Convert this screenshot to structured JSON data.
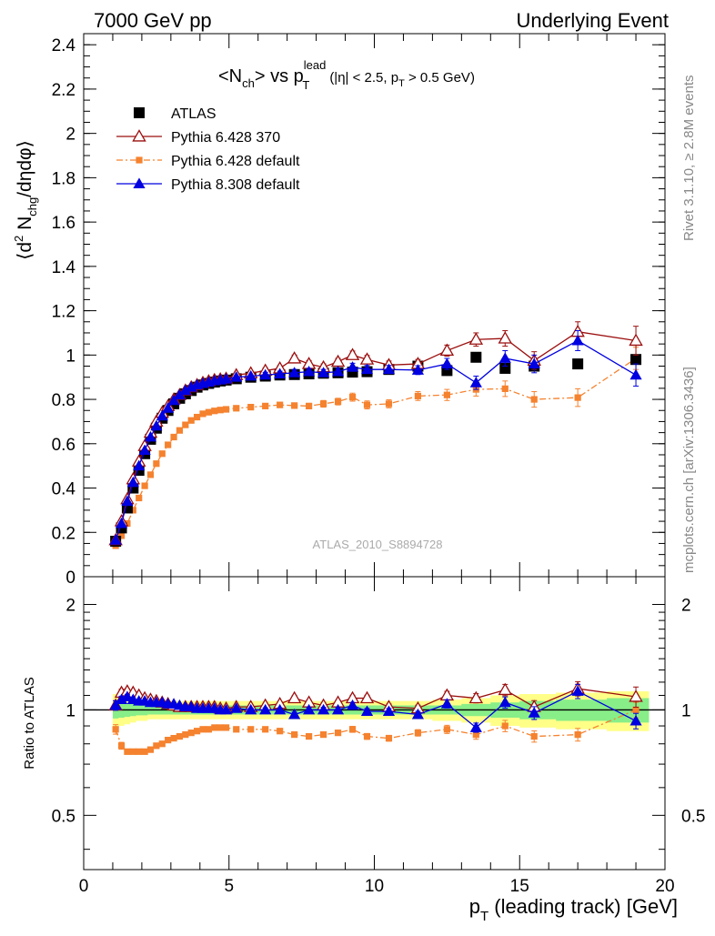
{
  "header": {
    "left": "7000 GeV pp",
    "right": "Underlying Event"
  },
  "side_labels": {
    "rivet": "Rivet 3.1.10, ≥ 2.8M events",
    "mcplots": "mcplots.cern.ch [arXiv:1306.3436]"
  },
  "watermark": "ATLAS_2010_S8894728",
  "title_parts": {
    "lt": "<N",
    "sub1": "ch",
    "mid": "> vs p",
    "sup": "lead",
    "sub2": "T",
    "paren": "(|η| < 2.5, p",
    "sub3": "T",
    "tail": " > 0.5 GeV)"
  },
  "ylabel_parts": {
    "a": "⟨d",
    "b": "2",
    "c": " N",
    "d": "chg",
    "e": "/dηdφ⟩"
  },
  "ratio_ylabel": "Ratio to ATLAS",
  "xlabel_parts": {
    "p": "p",
    "sub": "T",
    "rest": " (leading track) [GeV]"
  },
  "colors": {
    "atlas": "#000000",
    "p6_370": "#9b0e0e",
    "p6_default": "#f5822f",
    "p8_default": "#0000e0",
    "band_yellow": "#ffff88",
    "band_green": "#88ee88"
  },
  "chart_data": [
    {
      "type": "scatter",
      "panel": "main",
      "xlim": [
        0,
        20
      ],
      "ylim": [
        0,
        2.45
      ],
      "yticks": [
        "0",
        "0.2",
        "0.4",
        "0.6",
        "0.8",
        "1",
        "1.2",
        "1.4",
        "1.6",
        "1.8",
        "2",
        "2.2",
        "2.4"
      ],
      "xticks": [
        "0",
        "5",
        "10",
        "15",
        "20"
      ],
      "legend_position": "top-left",
      "x": [
        1.1,
        1.3,
        1.5,
        1.7,
        1.9,
        2.1,
        2.3,
        2.5,
        2.7,
        2.9,
        3.1,
        3.3,
        3.5,
        3.7,
        3.9,
        4.1,
        4.3,
        4.5,
        4.7,
        4.9,
        5.25,
        5.75,
        6.25,
        6.75,
        7.25,
        7.75,
        8.25,
        8.75,
        9.25,
        9.75,
        10.5,
        11.5,
        12.5,
        13.5,
        14.5,
        15.5,
        17.0,
        19.0
      ],
      "series": [
        {
          "name": "ATLAS",
          "marker": "square",
          "values": [
            0.16,
            0.22,
            0.31,
            0.4,
            0.48,
            0.555,
            0.62,
            0.67,
            0.715,
            0.75,
            0.78,
            0.805,
            0.825,
            0.84,
            0.855,
            0.865,
            0.872,
            0.878,
            0.883,
            0.887,
            0.893,
            0.9,
            0.905,
            0.91,
            0.912,
            0.915,
            0.918,
            0.92,
            0.923,
            0.925,
            0.935,
            0.95,
            0.93,
            0.99,
            0.94,
            0.95,
            0.96,
            0.98
          ],
          "errors": [
            0.005,
            0.005,
            0.005,
            0.005,
            0.005,
            0.005,
            0.005,
            0.005,
            0.005,
            0.005,
            0.005,
            0.005,
            0.005,
            0.005,
            0.005,
            0.005,
            0.005,
            0.005,
            0.005,
            0.005,
            0.005,
            0.005,
            0.005,
            0.005,
            0.005,
            0.005,
            0.005,
            0.005,
            0.006,
            0.006,
            0.008,
            0.01,
            0.012,
            0.015,
            0.02,
            0.025,
            0.03,
            0.04
          ]
        },
        {
          "name": "Pythia 6.428 370",
          "marker": "triangle-open",
          "values": [
            0.165,
            0.25,
            0.35,
            0.44,
            0.52,
            0.59,
            0.65,
            0.7,
            0.74,
            0.77,
            0.8,
            0.82,
            0.84,
            0.855,
            0.865,
            0.875,
            0.882,
            0.888,
            0.891,
            0.894,
            0.91,
            0.918,
            0.93,
            0.94,
            0.985,
            0.96,
            0.945,
            0.97,
            1.0,
            0.98,
            0.955,
            0.96,
            1.02,
            1.07,
            1.075,
            0.975,
            1.105,
            1.065
          ],
          "errors": [
            0.005,
            0.005,
            0.005,
            0.005,
            0.005,
            0.005,
            0.005,
            0.005,
            0.005,
            0.005,
            0.005,
            0.005,
            0.005,
            0.005,
            0.005,
            0.005,
            0.005,
            0.005,
            0.005,
            0.005,
            0.01,
            0.01,
            0.012,
            0.012,
            0.015,
            0.015,
            0.015,
            0.015,
            0.018,
            0.018,
            0.018,
            0.02,
            0.025,
            0.03,
            0.035,
            0.04,
            0.045,
            0.065
          ]
        },
        {
          "name": "Pythia 6.428 default",
          "marker": "square-small",
          "values": [
            0.14,
            0.185,
            0.24,
            0.3,
            0.355,
            0.41,
            0.46,
            0.51,
            0.555,
            0.595,
            0.63,
            0.66,
            0.685,
            0.705,
            0.72,
            0.735,
            0.742,
            0.748,
            0.752,
            0.755,
            0.76,
            0.765,
            0.77,
            0.775,
            0.772,
            0.77,
            0.78,
            0.79,
            0.81,
            0.775,
            0.78,
            0.815,
            0.82,
            0.845,
            0.848,
            0.8,
            0.808,
            0.985
          ],
          "errors": [
            0.005,
            0.005,
            0.005,
            0.005,
            0.005,
            0.005,
            0.005,
            0.005,
            0.005,
            0.005,
            0.005,
            0.005,
            0.005,
            0.005,
            0.005,
            0.005,
            0.005,
            0.005,
            0.005,
            0.005,
            0.008,
            0.008,
            0.01,
            0.01,
            0.012,
            0.012,
            0.015,
            0.015,
            0.018,
            0.018,
            0.018,
            0.02,
            0.025,
            0.03,
            0.035,
            0.035,
            0.04,
            0.05
          ]
        },
        {
          "name": "Pythia 8.308 default",
          "marker": "triangle-filled",
          "values": [
            0.165,
            0.24,
            0.34,
            0.425,
            0.5,
            0.57,
            0.63,
            0.68,
            0.725,
            0.76,
            0.795,
            0.82,
            0.84,
            0.855,
            0.865,
            0.872,
            0.878,
            0.884,
            0.888,
            0.892,
            0.9,
            0.905,
            0.91,
            0.915,
            0.92,
            0.925,
            0.92,
            0.925,
            0.945,
            0.935,
            0.935,
            0.932,
            0.96,
            0.875,
            0.985,
            0.96,
            1.065,
            0.91
          ],
          "errors": [
            0.005,
            0.005,
            0.005,
            0.005,
            0.005,
            0.005,
            0.005,
            0.005,
            0.005,
            0.005,
            0.005,
            0.005,
            0.005,
            0.005,
            0.005,
            0.005,
            0.005,
            0.005,
            0.005,
            0.005,
            0.01,
            0.01,
            0.012,
            0.012,
            0.015,
            0.015,
            0.015,
            0.015,
            0.018,
            0.018,
            0.018,
            0.02,
            0.025,
            0.03,
            0.035,
            0.04,
            0.045,
            0.05
          ]
        }
      ]
    },
    {
      "type": "scatter",
      "panel": "ratio",
      "scale": "log",
      "xlim": [
        0,
        20
      ],
      "ylim": [
        0.35,
        2.4
      ],
      "yticks": [
        "0.5",
        "1",
        "2"
      ],
      "xticks": [
        "0",
        "5",
        "10",
        "15",
        "20"
      ],
      "ylabel": "Ratio to ATLAS",
      "x": [
        1.1,
        1.3,
        1.5,
        1.7,
        1.9,
        2.1,
        2.3,
        2.5,
        2.7,
        2.9,
        3.1,
        3.3,
        3.5,
        3.7,
        3.9,
        4.1,
        4.3,
        4.5,
        4.7,
        4.9,
        5.25,
        5.75,
        6.25,
        6.75,
        7.25,
        7.75,
        8.25,
        8.75,
        9.25,
        9.75,
        10.5,
        11.5,
        12.5,
        13.5,
        14.5,
        15.5,
        17.0,
        19.0
      ],
      "band_green": [
        0.055,
        0.05,
        0.045,
        0.04,
        0.035,
        0.035,
        0.03,
        0.03,
        0.03,
        0.03,
        0.03,
        0.03,
        0.03,
        0.03,
        0.03,
        0.03,
        0.03,
        0.03,
        0.03,
        0.03,
        0.03,
        0.03,
        0.03,
        0.03,
        0.03,
        0.03,
        0.03,
        0.03,
        0.03,
        0.03,
        0.03,
        0.03,
        0.03,
        0.04,
        0.05,
        0.06,
        0.07,
        0.08
      ],
      "band_yellow": [
        0.11,
        0.1,
        0.09,
        0.08,
        0.07,
        0.07,
        0.06,
        0.06,
        0.06,
        0.06,
        0.06,
        0.06,
        0.06,
        0.06,
        0.06,
        0.06,
        0.06,
        0.06,
        0.06,
        0.06,
        0.06,
        0.06,
        0.06,
        0.06,
        0.06,
        0.06,
        0.06,
        0.06,
        0.06,
        0.06,
        0.06,
        0.06,
        0.07,
        0.08,
        0.1,
        0.11,
        0.12,
        0.13
      ],
      "series": [
        {
          "name": "Pythia 6.428 370",
          "values": [
            1.03,
            1.12,
            1.13,
            1.12,
            1.1,
            1.08,
            1.07,
            1.06,
            1.05,
            1.04,
            1.03,
            1.02,
            1.02,
            1.02,
            1.02,
            1.02,
            1.02,
            1.02,
            1.01,
            1.01,
            1.02,
            1.02,
            1.03,
            1.04,
            1.08,
            1.05,
            1.03,
            1.05,
            1.08,
            1.08,
            1.02,
            1.01,
            1.1,
            1.08,
            1.14,
            1.02,
            1.15,
            1.09
          ]
        },
        {
          "name": "Pythia 6.428 default",
          "values": [
            0.88,
            0.79,
            0.76,
            0.76,
            0.76,
            0.76,
            0.77,
            0.79,
            0.8,
            0.82,
            0.83,
            0.84,
            0.85,
            0.86,
            0.87,
            0.88,
            0.88,
            0.89,
            0.89,
            0.89,
            0.88,
            0.88,
            0.88,
            0.87,
            0.85,
            0.84,
            0.85,
            0.86,
            0.88,
            0.84,
            0.83,
            0.86,
            0.88,
            0.85,
            0.9,
            0.84,
            0.85,
            1.0
          ]
        },
        {
          "name": "Pythia 8.308 default",
          "values": [
            1.03,
            1.07,
            1.09,
            1.07,
            1.06,
            1.06,
            1.05,
            1.05,
            1.05,
            1.04,
            1.04,
            1.03,
            1.02,
            1.02,
            1.01,
            1.01,
            1.01,
            1.01,
            1.0,
            1.0,
            1.01,
            1.0,
            1.0,
            1.0,
            0.97,
            1.0,
            1.0,
            1.0,
            1.03,
            0.99,
            0.99,
            0.97,
            1.04,
            0.89,
            1.05,
            0.98,
            1.13,
            0.93
          ]
        }
      ]
    }
  ]
}
